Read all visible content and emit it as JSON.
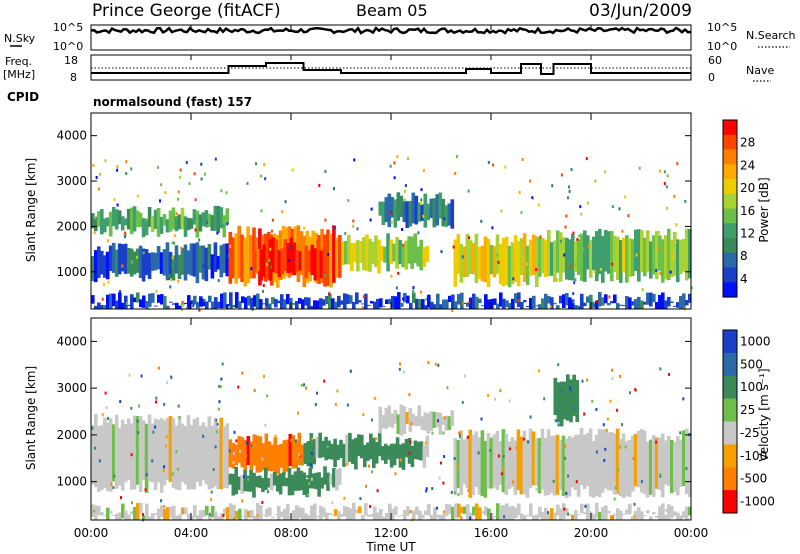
{
  "header": {
    "station": "Prince George (fitACF)",
    "beam": "Beam 05",
    "date": "03/Jun/2009"
  },
  "top_panels": {
    "nsky_label": "N.Sky",
    "nsky_ticks": [
      "10^5",
      "10^0"
    ],
    "nsearch_label": "N.Search",
    "nsearch_ticks": [
      "10^5",
      "10^0"
    ],
    "freq_label_1": "Freq.",
    "freq_label_2": "[MHz]",
    "freq_ticks": [
      "18",
      "8"
    ],
    "nave_label": "Nave",
    "nave_ticks": [
      "60",
      "0"
    ],
    "cpid_label": "CPID",
    "cpid_value": "normalsound (fast) 157"
  },
  "chart_data": [
    {
      "type": "heatmap",
      "name": "power-panel",
      "ylabel": "Slant Range [km]",
      "y_ticks": [
        "4000",
        "3000",
        "2000",
        "1000"
      ],
      "ylim": [
        180,
        4500
      ],
      "colorbar_label": "Power [dB]",
      "colorbar_ticks": [
        "28",
        "24",
        "20",
        "16",
        "12",
        "8",
        "4"
      ],
      "colorbar_colors": [
        "#ff0000",
        "#ff4400",
        "#ff7f00",
        "#ffaa00",
        "#eecc00",
        "#a8d232",
        "#6cc04a",
        "#3e9e6e",
        "#3a8a5a",
        "#2a6aa8",
        "#1a3fc8",
        "#0010ff"
      ],
      "bands": [
        {
          "x0": 0.0,
          "x1": 5.5,
          "y0": 1900,
          "y1": 2300,
          "v": 14
        },
        {
          "x0": 0.0,
          "x1": 5.5,
          "y0": 900,
          "y1": 1500,
          "v": 8
        },
        {
          "x0": 5.5,
          "x1": 10.0,
          "y0": 800,
          "y1": 1900,
          "v": 26
        },
        {
          "x0": 6.5,
          "x1": 9.5,
          "y0": 900,
          "y1": 1600,
          "v": 30
        },
        {
          "x0": 10.0,
          "x1": 13.5,
          "y0": 1100,
          "y1": 1700,
          "v": 18
        },
        {
          "x0": 11.5,
          "x1": 14.5,
          "y0": 2100,
          "y1": 2600,
          "v": 10
        },
        {
          "x0": 14.5,
          "x1": 18.0,
          "y0": 800,
          "y1": 1700,
          "v": 20
        },
        {
          "x0": 18.0,
          "x1": 24.0,
          "y0": 900,
          "y1": 1800,
          "v": 16
        },
        {
          "x0": 0.0,
          "x1": 24.0,
          "y0": 180,
          "y1": 400,
          "v": 6
        }
      ]
    },
    {
      "type": "heatmap",
      "name": "velocity-panel",
      "ylabel": "Slant Range [km]",
      "y_ticks": [
        "4000",
        "3000",
        "2000",
        "1000"
      ],
      "ylim": [
        180,
        4500
      ],
      "colorbar_label": "Velocity [m s⁻¹]",
      "colorbar_ticks": [
        "1000",
        "500",
        "100",
        "25",
        "-25",
        "-100",
        "-500",
        "-1000"
      ],
      "colorbar_colors": [
        "#1a3fc8",
        "#2a6aa8",
        "#3a8a5a",
        "#6cc04a",
        "#c8c8c8",
        "#f5a000",
        "#ff7f00",
        "#ff0000"
      ],
      "bands": [
        {
          "x0": 0.0,
          "x1": 5.5,
          "y0": 900,
          "y1": 2300,
          "v": 0
        },
        {
          "x0": 5.5,
          "x1": 8.5,
          "y0": 1300,
          "y1": 1900,
          "v": -500
        },
        {
          "x0": 5.5,
          "x1": 10.0,
          "y0": 800,
          "y1": 1200,
          "v": 100
        },
        {
          "x0": 8.5,
          "x1": 13.5,
          "y0": 1400,
          "y1": 1900,
          "v": 100
        },
        {
          "x0": 11.5,
          "x1": 14.5,
          "y0": 2100,
          "y1": 2500,
          "v": 0
        },
        {
          "x0": 14.5,
          "x1": 24.0,
          "y0": 800,
          "y1": 2000,
          "v": 0
        },
        {
          "x0": 18.5,
          "x1": 19.5,
          "y0": 2300,
          "y1": 3200,
          "v": 100
        },
        {
          "x0": 0.0,
          "x1": 24.0,
          "y0": 180,
          "y1": 400,
          "v": 0
        }
      ],
      "x_ticks": [
        "00:00",
        "04:00",
        "08:00",
        "12:00",
        "16:00",
        "20:00",
        "00:00"
      ],
      "xlabel": "Time UT"
    }
  ]
}
